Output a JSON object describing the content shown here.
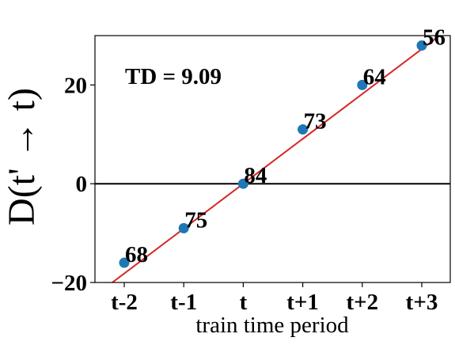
{
  "chart_data": {
    "type": "scatter",
    "categories": [
      "t-2",
      "t-1",
      "t",
      "t+1",
      "t+2",
      "t+3"
    ],
    "points": [
      {
        "x": "t-2",
        "y": -16,
        "label": "68"
      },
      {
        "x": "t-1",
        "y": -9,
        "label": "75"
      },
      {
        "x": "t",
        "y": 0,
        "label": "84"
      },
      {
        "x": "t+1",
        "y": 11,
        "label": "73"
      },
      {
        "x": "t+2",
        "y": 20,
        "label": "64"
      },
      {
        "x": "t+3",
        "y": 28,
        "label": "56"
      }
    ],
    "fit_line": {
      "slope": 9.09,
      "intercept": 0.0,
      "color": "#d62728"
    },
    "zero_line": {
      "y": 0,
      "color": "#000000"
    },
    "annotation": "TD = 9.09",
    "xlabel": "train time period",
    "ylabel": "D(t' → t)",
    "yticks": [
      "−20",
      "0",
      "20"
    ],
    "ytick_values": [
      -20,
      0,
      20
    ],
    "ylim": [
      -20,
      30
    ],
    "grid": false,
    "colors": {
      "points": "#1f77b4",
      "fit": "#d62728",
      "axis": "#000000"
    }
  }
}
